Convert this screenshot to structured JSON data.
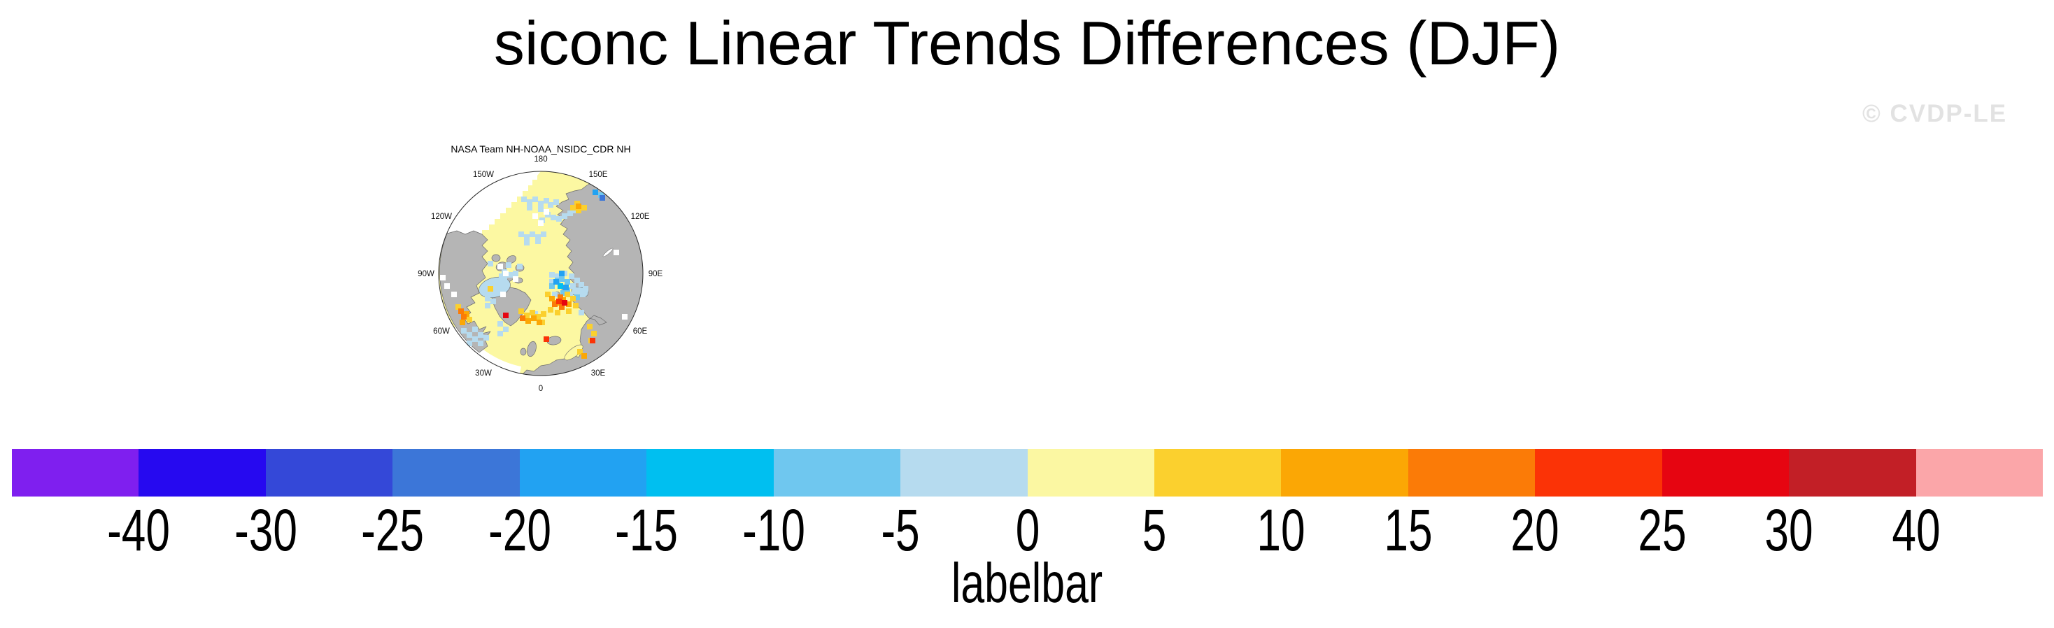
{
  "title": "siconc Linear Trends Differences (DJF)",
  "watermark": "© CVDP-LE",
  "map_panel": {
    "title": "NASA Team NH-NOAA_NSIDC_CDR NH",
    "lon_labels": [
      "180",
      "150E",
      "120E",
      "90E",
      "60E",
      "30E",
      "0",
      "30W",
      "60W",
      "90W",
      "120W",
      "150W"
    ]
  },
  "chart_data": {
    "type": "heatmap",
    "title": "siconc Linear Trends Differences (DJF)",
    "panel_title": "NASA Team NH-NOAA_NSIDC_CDR NH",
    "variable": "siconc linear trend difference",
    "season": "DJF",
    "projection": "north-polar-stereographic",
    "colorbar": {
      "label": "labelbar",
      "ticks": [
        -40,
        -30,
        -25,
        -20,
        -15,
        -10,
        -5,
        0,
        5,
        10,
        15,
        20,
        25,
        30,
        40
      ],
      "colors": [
        "#7f1fef",
        "#2609f0",
        "#3448d8",
        "#3c76d8",
        "#22a2f2",
        "#00bff0",
        "#6fc7ef",
        "#b6dbef",
        "#fbf7a2",
        "#fbd02e",
        "#fba705",
        "#fb7b07",
        "#fb3306",
        "#e60511",
        "#c21f26",
        "#fba6a9"
      ],
      "orientation": "horizontal"
    },
    "map_colors": {
      "land": "#b5b5b5",
      "coast": "#6b6b6b",
      "ocean_fill": "#fcf8a2",
      "no_data": "#ffffff",
      "rim": "#2a2a2a"
    },
    "cells": [
      {
        "ci": 7,
        "cells": [
          [
            152,
            70
          ],
          [
            160,
            74
          ],
          [
            168,
            70
          ],
          [
            176,
            76
          ],
          [
            184,
            72
          ],
          [
            160,
            82
          ],
          [
            176,
            84
          ],
          [
            190,
            78
          ],
          [
            198,
            74
          ],
          [
            186,
            92
          ],
          [
            194,
            96
          ],
          [
            202,
            98
          ],
          [
            210,
            94
          ],
          [
            218,
            90
          ],
          [
            226,
            86
          ],
          [
            234,
            82
          ],
          [
            178,
            100
          ],
          [
            148,
            120
          ],
          [
            156,
            124
          ],
          [
            164,
            120
          ],
          [
            172,
            124
          ],
          [
            180,
            120
          ],
          [
            156,
            132
          ],
          [
            172,
            130
          ],
          [
            124,
            174
          ],
          [
            132,
            178
          ],
          [
            124,
            184
          ],
          [
            140,
            176
          ],
          [
            192,
            178
          ],
          [
            200,
            180
          ],
          [
            210,
            176
          ],
          [
            220,
            180
          ],
          [
            228,
            186
          ],
          [
            234,
            192
          ],
          [
            240,
            198
          ],
          [
            192,
            188
          ],
          [
            222,
            194
          ],
          [
            230,
            202
          ],
          [
            218,
            206
          ],
          [
            234,
            232
          ],
          [
            100,
            212
          ],
          [
            108,
            216
          ],
          [
            100,
            222
          ],
          [
            66,
            258
          ],
          [
            74,
            264
          ],
          [
            82,
            270
          ],
          [
            90,
            264
          ],
          [
            82,
            256
          ],
          [
            74,
            276
          ],
          [
            90,
            276
          ],
          [
            98,
            268
          ],
          [
            118,
            248
          ],
          [
            126,
            256
          ],
          [
            118,
            262
          ],
          [
            196,
            206
          ],
          [
            168,
            234
          ],
          [
            120,
            180
          ],
          [
            138,
            178
          ],
          [
            130,
            164
          ],
          [
            146,
            166
          ],
          [
            104,
            162
          ],
          [
            236,
            206
          ]
        ]
      },
      {
        "ci": 6,
        "cells": [
          [
            200,
            186
          ],
          [
            214,
            200
          ],
          [
            206,
            184
          ],
          [
            214,
            188
          ],
          [
            192,
            194
          ],
          [
            262,
            64
          ],
          [
            208,
            204
          ],
          [
            228,
            210
          ]
        ]
      },
      {
        "ci": 5,
        "cells": [
          [
            204,
            194
          ]
        ]
      },
      {
        "ci": 4,
        "cells": [
          [
            198,
            188
          ],
          [
            212,
            196
          ],
          [
            254,
            60
          ],
          [
            206,
            176
          ]
        ]
      },
      {
        "ci": 3,
        "cells": [
          [
            264,
            68
          ]
        ]
      },
      {
        "ci": 9,
        "cells": [
          [
            222,
            82
          ],
          [
            230,
            86
          ],
          [
            238,
            82
          ],
          [
            228,
            76
          ],
          [
            186,
            206
          ],
          [
            214,
            206
          ],
          [
            222,
            212
          ],
          [
            226,
            222
          ],
          [
            190,
            228
          ],
          [
            200,
            232
          ],
          [
            216,
            230
          ],
          [
            148,
            230
          ],
          [
            156,
            236
          ],
          [
            164,
            232
          ],
          [
            172,
            238
          ],
          [
            180,
            234
          ],
          [
            246,
            252
          ],
          [
            252,
            262
          ],
          [
            248,
            272
          ],
          [
            104,
            198
          ],
          [
            74,
            242
          ],
          [
            58,
            224
          ],
          [
            232,
            288
          ],
          [
            178,
            246
          ]
        ]
      },
      {
        "ci": 10,
        "cells": [
          [
            192,
            212
          ],
          [
            200,
            218
          ],
          [
            208,
            214
          ],
          [
            216,
            220
          ],
          [
            158,
            244
          ],
          [
            166,
            240
          ],
          [
            70,
            234
          ],
          [
            64,
            246
          ],
          [
            230,
            80
          ],
          [
            238,
            294
          ],
          [
            174,
            246
          ]
        ]
      },
      {
        "ci": 11,
        "cells": [
          [
            196,
            220
          ],
          [
            206,
            224
          ],
          [
            62,
            230
          ],
          [
            66,
            238
          ],
          [
            150,
            240
          ],
          [
            204,
            210
          ]
        ]
      },
      {
        "ci": 12,
        "cells": [
          [
            202,
            216
          ],
          [
            250,
            272
          ],
          [
            184,
            270
          ]
        ]
      },
      {
        "ci": 13,
        "cells": [
          [
            126,
            236
          ],
          [
            210,
            218
          ]
        ]
      },
      {
        "ci": -1,
        "cells": [
          [
            168,
            94
          ],
          [
            184,
            88
          ],
          [
            176,
            104
          ],
          [
            126,
            176
          ],
          [
            140,
            184
          ],
          [
            118,
            166
          ],
          [
            122,
            206
          ],
          [
            42,
            194
          ],
          [
            52,
            206
          ],
          [
            36,
            182
          ],
          [
            296,
            238
          ],
          [
            284,
            146
          ]
        ]
      }
    ]
  }
}
